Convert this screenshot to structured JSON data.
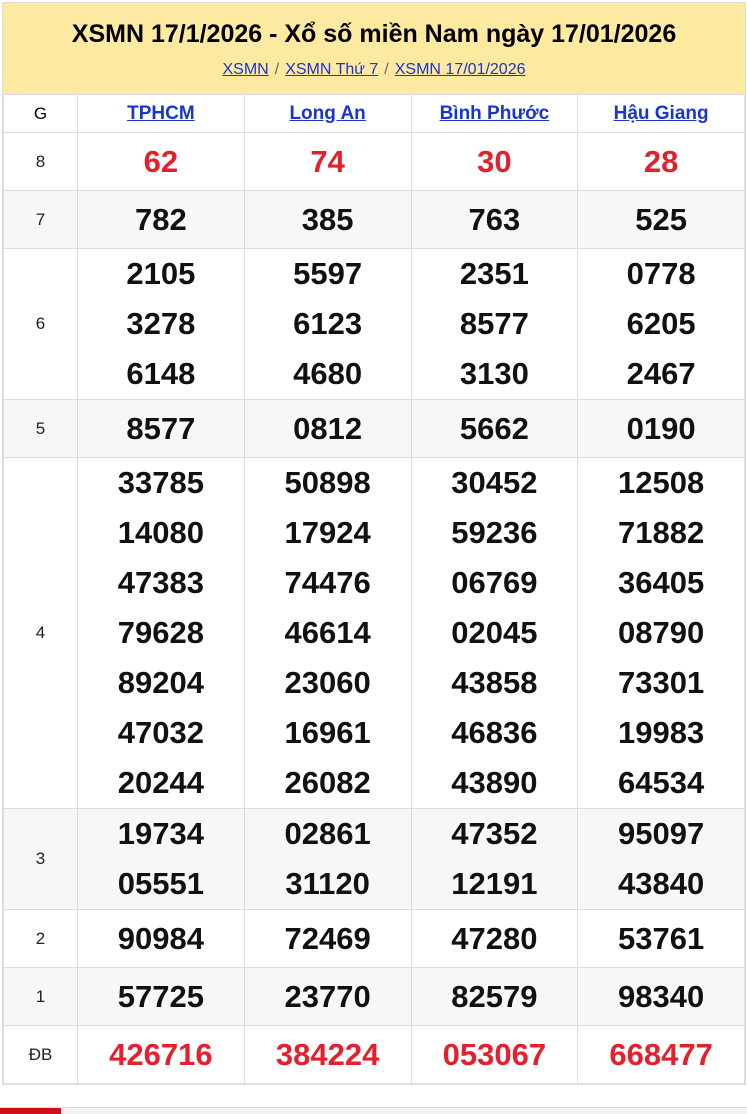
{
  "header": {
    "title": "XSMN 17/1/2026 - Xổ số miền Nam ngày 17/01/2026",
    "breadcrumbs": [
      "XSMN",
      "XSMN Thứ 7",
      "XSMN 17/01/2026"
    ],
    "separator": "/"
  },
  "table": {
    "prize_header": "G",
    "provinces": [
      "TPHCM",
      "Long An",
      "Bình Phước",
      "Hậu Giang"
    ],
    "rows": [
      {
        "prize": "8",
        "highlight": true,
        "values": [
          [
            "62"
          ],
          [
            "74"
          ],
          [
            "30"
          ],
          [
            "28"
          ]
        ]
      },
      {
        "prize": "7",
        "values": [
          [
            "782"
          ],
          [
            "385"
          ],
          [
            "763"
          ],
          [
            "525"
          ]
        ]
      },
      {
        "prize": "6",
        "values": [
          [
            "2105",
            "3278",
            "6148"
          ],
          [
            "5597",
            "6123",
            "4680"
          ],
          [
            "2351",
            "8577",
            "3130"
          ],
          [
            "0778",
            "6205",
            "2467"
          ]
        ]
      },
      {
        "prize": "5",
        "values": [
          [
            "8577"
          ],
          [
            "0812"
          ],
          [
            "5662"
          ],
          [
            "0190"
          ]
        ]
      },
      {
        "prize": "4",
        "values": [
          [
            "33785",
            "14080",
            "47383",
            "79628",
            "89204",
            "47032",
            "20244"
          ],
          [
            "50898",
            "17924",
            "74476",
            "46614",
            "23060",
            "16961",
            "26082"
          ],
          [
            "30452",
            "59236",
            "06769",
            "02045",
            "43858",
            "46836",
            "43890"
          ],
          [
            "12508",
            "71882",
            "36405",
            "08790",
            "73301",
            "19983",
            "64534"
          ]
        ]
      },
      {
        "prize": "3",
        "values": [
          [
            "19734",
            "05551"
          ],
          [
            "02861",
            "31120"
          ],
          [
            "47352",
            "12191"
          ],
          [
            "95097",
            "43840"
          ]
        ]
      },
      {
        "prize": "2",
        "values": [
          [
            "90984"
          ],
          [
            "72469"
          ],
          [
            "47280"
          ],
          [
            "53761"
          ]
        ]
      },
      {
        "prize": "1",
        "values": [
          [
            "57725"
          ],
          [
            "23770"
          ],
          [
            "82579"
          ],
          [
            "98340"
          ]
        ]
      },
      {
        "prize": "ĐB",
        "highlight": true,
        "values": [
          [
            "426716"
          ],
          [
            "384224"
          ],
          [
            "053067"
          ],
          [
            "668477"
          ]
        ]
      }
    ]
  },
  "colors": {
    "header_bg": "#fde9a0",
    "link": "#1a35c9",
    "highlight": "#e4202d"
  }
}
